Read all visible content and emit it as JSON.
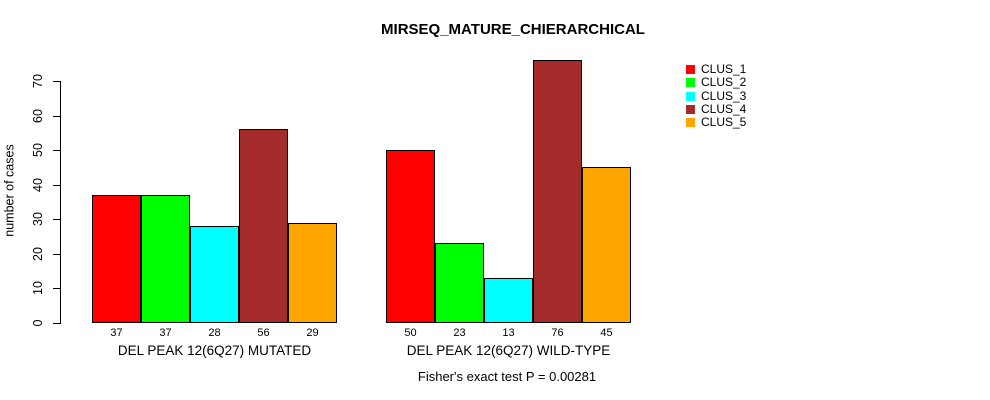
{
  "chart_data": {
    "type": "bar",
    "title": "MIRSEQ_MATURE_CHIERARCHICAL",
    "ylabel": "number of cases",
    "xlabel": "",
    "categories": [
      "DEL PEAK 12(6Q27) MUTATED",
      "DEL PEAK 12(6Q27) WILD-TYPE"
    ],
    "series": [
      {
        "name": "CLUS_1",
        "color": "#FF0000",
        "values": [
          37,
          50
        ]
      },
      {
        "name": "CLUS_2",
        "color": "#00FF00",
        "values": [
          37,
          23
        ]
      },
      {
        "name": "CLUS_3",
        "color": "#00FFFF",
        "values": [
          28,
          13
        ]
      },
      {
        "name": "CLUS_4",
        "color": "#A52A2A",
        "values": [
          56,
          76
        ]
      },
      {
        "name": "CLUS_5",
        "color": "#FFA500",
        "values": [
          29,
          45
        ]
      }
    ],
    "bar_value_labels": {
      "DEL PEAK 12(6Q27) MUTATED": [
        37,
        37,
        28,
        56,
        29
      ],
      "DEL PEAK 12(6Q27) WILD-TYPE": [
        50,
        23,
        13,
        76,
        45
      ]
    },
    "ylim": [
      0,
      70
    ],
    "yticks": [
      0,
      10,
      20,
      30,
      40,
      50,
      60,
      70
    ],
    "grid": false,
    "legend_position": "top-right",
    "annotation": "Fisher's exact test P = 0.00281"
  }
}
